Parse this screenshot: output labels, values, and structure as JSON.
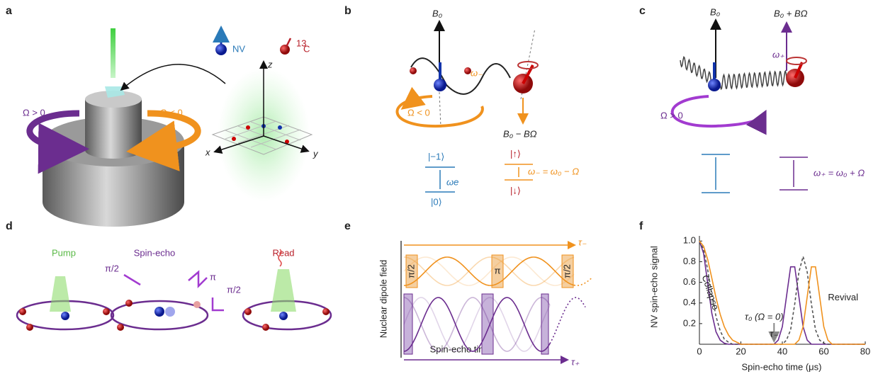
{
  "panel_labels": [
    "a",
    "b",
    "c",
    "d",
    "e",
    "f"
  ],
  "a": {
    "nv": "NV",
    "c13_mass": "13",
    "c13": "C",
    "omega_pos": "Ω > 0",
    "omega_neg": "Ω < 0",
    "x": "x",
    "y": "y",
    "z": "z"
  },
  "b": {
    "b0": "B₀",
    "omega_minus": "ω₋",
    "rotation": "Ω < 0",
    "field": "B₀ − BΩ",
    "level_m1": "|−1⟩",
    "level_0": "|0⟩",
    "omega_e": "ωe",
    "level_up": "|↑⟩",
    "level_down": "|↓⟩",
    "relation": "ω₋ = ω₀ − Ω"
  },
  "c": {
    "b0": "B₀",
    "field": "B₀ + BΩ",
    "omega_plus": "ω₊",
    "rotation": "Ω > 0",
    "relation": "ω₊ = ω₀ + Ω"
  },
  "d": {
    "pump": "Pump",
    "echo": "Spin-echo",
    "read": "Read",
    "pulse1": "π/2",
    "pulse2": "π",
    "pulse3": "π/2"
  },
  "e": {
    "ylabel": "Nuclear dipole field",
    "tau_minus": "τ₋",
    "pulse1": "π/2",
    "pulse2": "π",
    "pulse3": "π/2",
    "xlabel": "Spin-echo time",
    "tau_plus": "τ₊"
  },
  "chart_data": {
    "type": "line",
    "xlabel": "Spin-echo time (μs)",
    "ylabel": "NV spin-echo signal",
    "x": [
      0,
      2,
      4,
      6,
      8,
      10,
      12,
      14,
      16,
      18,
      20,
      30,
      36,
      38,
      40,
      42,
      44,
      46,
      48,
      50,
      52,
      54,
      56,
      58,
      60,
      62,
      64,
      70,
      80
    ],
    "series": [
      {
        "name": "τ₊",
        "color": "#6b2d8f",
        "dashed": false,
        "values": [
          1,
          0.88,
          0.59,
          0.3,
          0.12,
          0.04,
          0.01,
          0,
          0,
          0,
          0,
          0,
          0,
          0.04,
          0.17,
          0.46,
          0.75,
          0.75,
          0.46,
          0.17,
          0.04,
          0,
          0,
          0,
          0,
          0,
          0,
          0,
          0
        ]
      },
      {
        "name": "τ₀ (Ω = 0)",
        "color": "#555555",
        "dashed": true,
        "values": [
          1,
          0.92,
          0.72,
          0.48,
          0.27,
          0.13,
          0.05,
          0.02,
          0,
          0,
          0,
          0,
          0,
          0,
          0,
          0.04,
          0.14,
          0.39,
          0.7,
          0.85,
          0.7,
          0.39,
          0.14,
          0.04,
          0.01,
          0,
          0,
          0,
          0
        ]
      },
      {
        "name": "τ₋",
        "color": "#f0921e",
        "dashed": false,
        "values": [
          1,
          0.95,
          0.82,
          0.64,
          0.45,
          0.29,
          0.17,
          0.09,
          0.04,
          0.02,
          0,
          0,
          0,
          0,
          0,
          0,
          0,
          0,
          0.04,
          0.17,
          0.46,
          0.75,
          0.75,
          0.46,
          0.17,
          0.04,
          0,
          0,
          0
        ]
      }
    ],
    "annotations": [
      "Collapse",
      "Revival"
    ],
    "xlim": [
      0,
      80
    ],
    "ylim": [
      0,
      1.05
    ],
    "xticks": [
      0,
      20,
      40,
      60,
      80
    ],
    "yticks": [
      0.2,
      0.4,
      0.6,
      0.8,
      {
        "value": 1,
        "label": "1.0"
      }
    ]
  }
}
